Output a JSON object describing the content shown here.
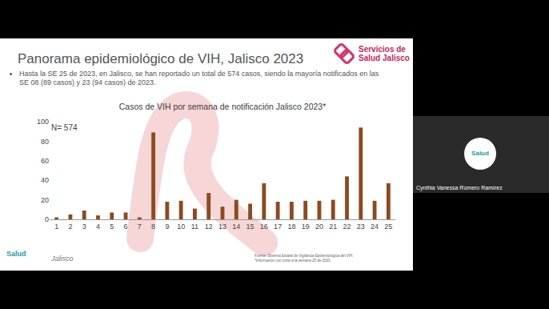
{
  "slide": {
    "title": "Panorama epidemiológico de VIH, Jalisco 2023",
    "bullet": "Hasta la SE 25 de 2023, en Jalisco, se han reportado un total de 574 casos, siendo la mayoría notificados en las SE 08 (89 casos) y 23 (94 casos) de 2023.",
    "logo_text": [
      "Servicios de",
      "Salud Jalisco"
    ],
    "source": [
      "Fuente: Sistema Estatal de Vigilancia Epidemiológica del VIH.",
      "*Información con corte a la semana 25 de 2023."
    ],
    "footer_logos": [
      "Salud",
      "Jalisco"
    ]
  },
  "participant": {
    "logo": "Salud",
    "name": "Cynthia Vanessa Romero Ramírez"
  },
  "chart_data": {
    "type": "bar",
    "title": "Casos de VIH por semana de notificación Jalisco 2023*",
    "annotation": "N= 574",
    "categories": [
      "1",
      "2",
      "3",
      "4",
      "5",
      "6",
      "7",
      "8",
      "9",
      "10",
      "11",
      "12",
      "13",
      "14",
      "15",
      "16",
      "17",
      "18",
      "19",
      "20",
      "21",
      "22",
      "23",
      "24",
      "25"
    ],
    "values": [
      2,
      5,
      9,
      4,
      7,
      7,
      2,
      89,
      18,
      19,
      11,
      27,
      13,
      20,
      16,
      37,
      18,
      18,
      19,
      19,
      20,
      44,
      94,
      19,
      37
    ],
    "color": "#8c4a1e",
    "ylim": [
      0,
      100
    ],
    "yticks": [
      0,
      20,
      40,
      60,
      80,
      100
    ],
    "grid": false
  }
}
